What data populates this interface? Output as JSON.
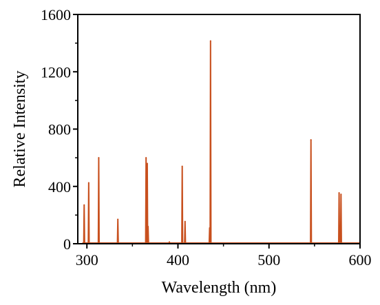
{
  "chart_data": {
    "type": "line",
    "title": "",
    "xlabel": "Wavelength (nm)",
    "ylabel": "Relative Intensity",
    "xlim": [
      290,
      600
    ],
    "ylim": [
      0,
      1600
    ],
    "x_ticks": [
      300,
      400,
      500,
      600
    ],
    "y_ticks": [
      0,
      400,
      800,
      1200,
      1600
    ],
    "x_tick_labels": [
      "300",
      "400",
      "500",
      "600"
    ],
    "y_tick_labels": [
      "0",
      "400",
      "800",
      "1200",
      "1600"
    ],
    "grid": false,
    "legend": "none",
    "line_color": "#c8501e",
    "series": [
      {
        "baseline": 5,
        "peaks": [
          {
            "x": 297,
            "y": 270
          },
          {
            "x": 302,
            "y": 425
          },
          {
            "x": 313,
            "y": 600
          },
          {
            "x": 334,
            "y": 170
          },
          {
            "x": 365,
            "y": 600
          },
          {
            "x": 366.3,
            "y": 560
          },
          {
            "x": 367.2,
            "y": 120
          },
          {
            "x": 390.6,
            "y": 12
          },
          {
            "x": 404.7,
            "y": 540
          },
          {
            "x": 407.8,
            "y": 155
          },
          {
            "x": 434.8,
            "y": 110
          },
          {
            "x": 435.8,
            "y": 1415
          },
          {
            "x": 546.1,
            "y": 725
          },
          {
            "x": 577.0,
            "y": 355
          },
          {
            "x": 579.1,
            "y": 345
          }
        ]
      }
    ]
  }
}
